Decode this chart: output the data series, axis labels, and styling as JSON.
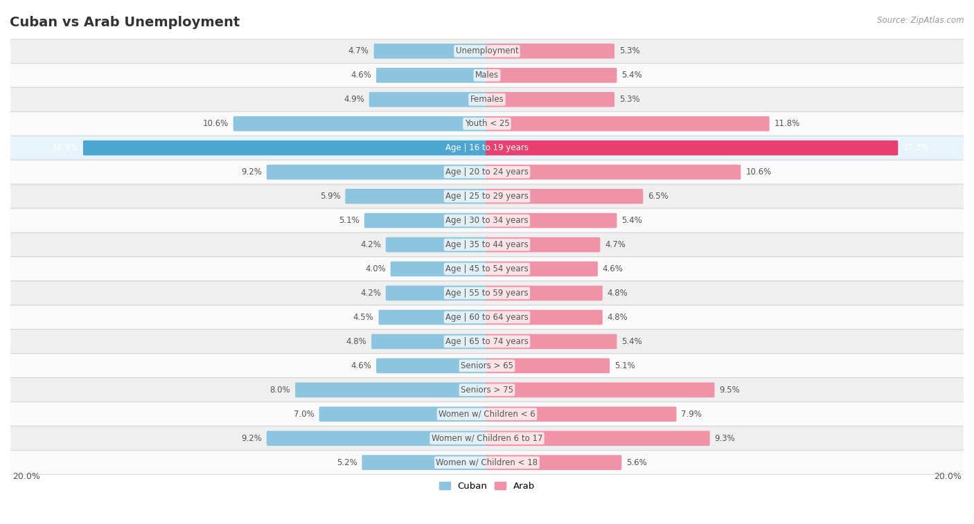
{
  "title": "Cuban vs Arab Unemployment",
  "source": "Source: ZipAtlas.com",
  "categories": [
    "Unemployment",
    "Males",
    "Females",
    "Youth < 25",
    "Age | 16 to 19 years",
    "Age | 20 to 24 years",
    "Age | 25 to 29 years",
    "Age | 30 to 34 years",
    "Age | 35 to 44 years",
    "Age | 45 to 54 years",
    "Age | 55 to 59 years",
    "Age | 60 to 64 years",
    "Age | 65 to 74 years",
    "Seniors > 65",
    "Seniors > 75",
    "Women w/ Children < 6",
    "Women w/ Children 6 to 17",
    "Women w/ Children < 18"
  ],
  "cuban": [
    4.7,
    4.6,
    4.9,
    10.6,
    16.9,
    9.2,
    5.9,
    5.1,
    4.2,
    4.0,
    4.2,
    4.5,
    4.8,
    4.6,
    8.0,
    7.0,
    9.2,
    5.2
  ],
  "arab": [
    5.3,
    5.4,
    5.3,
    11.8,
    17.2,
    10.6,
    6.5,
    5.4,
    4.7,
    4.6,
    4.8,
    4.8,
    5.4,
    5.1,
    9.5,
    7.9,
    9.3,
    5.6
  ],
  "cuban_color": "#8dc4de",
  "arab_color": "#f093a8",
  "cuban_highlight": "#4da6d0",
  "arab_highlight": "#e84070",
  "highlight_idx": 4,
  "row_bg_even": "#efefef",
  "row_bg_odd": "#fafafa",
  "highlight_row_bg": "#e8f4fb",
  "max_val": 20.0,
  "bar_height": 0.52,
  "title_fontsize": 14,
  "label_fontsize": 8.5,
  "val_fontsize": 8.5
}
